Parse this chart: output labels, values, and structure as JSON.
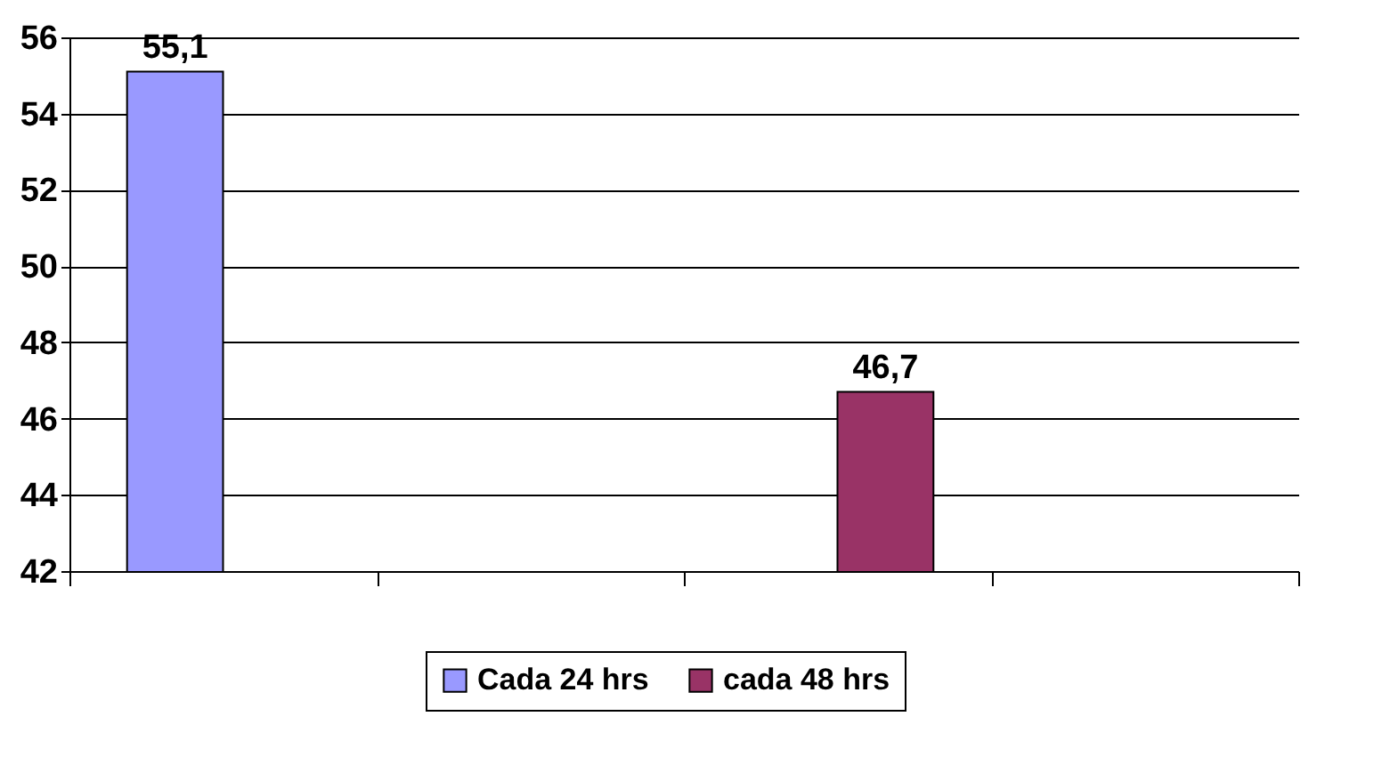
{
  "chart_data": {
    "type": "bar",
    "categories": [
      null,
      null,
      null,
      null
    ],
    "series": [
      {
        "name": "Cada 24 hrs",
        "color": "#9999ff",
        "values": [
          55.1,
          null,
          null,
          null
        ],
        "value_labels": [
          "55,1",
          null,
          null,
          null
        ]
      },
      {
        "name": "cada 48 hrs",
        "color": "#993366",
        "values": [
          null,
          null,
          46.7,
          null
        ],
        "value_labels": [
          null,
          null,
          "46,7",
          null
        ]
      }
    ],
    "ylim": [
      42,
      56
    ],
    "yticks": [
      42,
      44,
      46,
      48,
      50,
      52,
      54,
      56
    ],
    "grid": "y",
    "legend": "bottom"
  }
}
